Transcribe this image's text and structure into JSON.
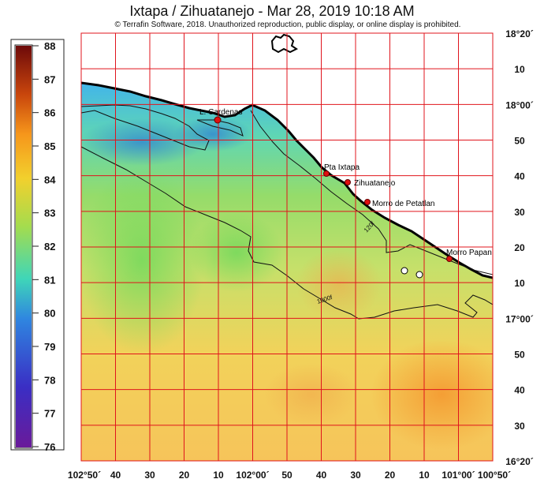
{
  "header": {
    "title": "Ixtapa / Zihuatanejo - Mar 28, 2019 10:18 AM",
    "copyright": "© Terrafin Software,  2018.  Unauthorized reproduction, public display, or online display is prohibited."
  },
  "colorbar": {
    "ticks": [
      "88",
      "87",
      "86",
      "85",
      "84",
      "83",
      "82",
      "81",
      "80",
      "79",
      "78",
      "77",
      "76"
    ],
    "colors": [
      "#6d0a0a",
      "#c8450c",
      "#f6961b",
      "#f2d02d",
      "#a4dc4e",
      "#3fd6b8",
      "#2f86e0",
      "#3a2ec4",
      "#6a1a9a"
    ]
  },
  "axes": {
    "bottom": [
      "102°50´",
      "40",
      "30",
      "20",
      "10",
      "102°00´",
      "50",
      "40",
      "30",
      "20",
      "10",
      "101°00´",
      "100°50´"
    ],
    "right": [
      "18°20´",
      "10",
      "18°00´",
      "50",
      "40",
      "30",
      "20",
      "10",
      "17°00´",
      "50",
      "40",
      "30",
      "16°20´"
    ]
  },
  "places": [
    "L. Cardenas",
    "Pta Ixtapa",
    "Zihuatanejo",
    "Morro de Petatlan",
    "Morro Papan"
  ],
  "contours": [
    "1000f",
    "120f"
  ],
  "colors": {
    "grid": "#e0141c",
    "land": "#ffffff",
    "marker": "#e01010",
    "coast": "#000000"
  }
}
